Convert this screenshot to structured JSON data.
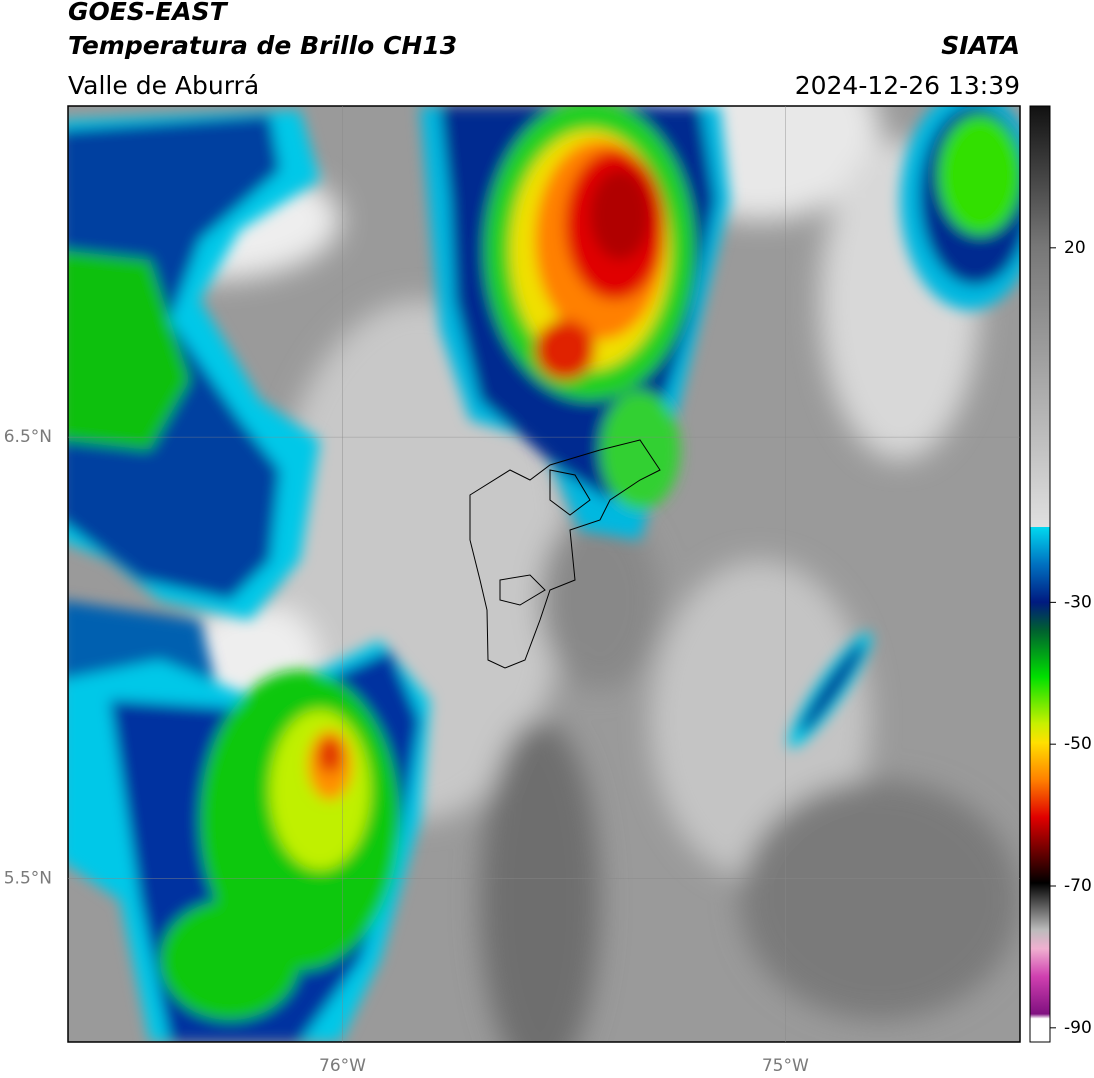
{
  "header": {
    "title": "GOES-EAST",
    "subtitle": "Temperatura de Brillo CH13",
    "region": "Valle de Aburrá",
    "source": "SIATA",
    "datetime": "2024-12-26 13:39"
  },
  "map": {
    "xlim": [
      -76.62,
      -74.47
    ],
    "ylim": [
      5.13,
      7.25
    ],
    "xticks": [
      {
        "value": -76,
        "label": "76°W"
      },
      {
        "value": -75,
        "label": "75°W"
      }
    ],
    "yticks": [
      {
        "value": 6.5,
        "label": "6.5°N"
      },
      {
        "value": 5.5,
        "label": "5.5°N"
      }
    ],
    "grid": true
  },
  "colorbar": {
    "lim": [
      -92,
      40
    ],
    "ticks": [
      20,
      -30,
      -50,
      -70,
      -90
    ]
  }
}
